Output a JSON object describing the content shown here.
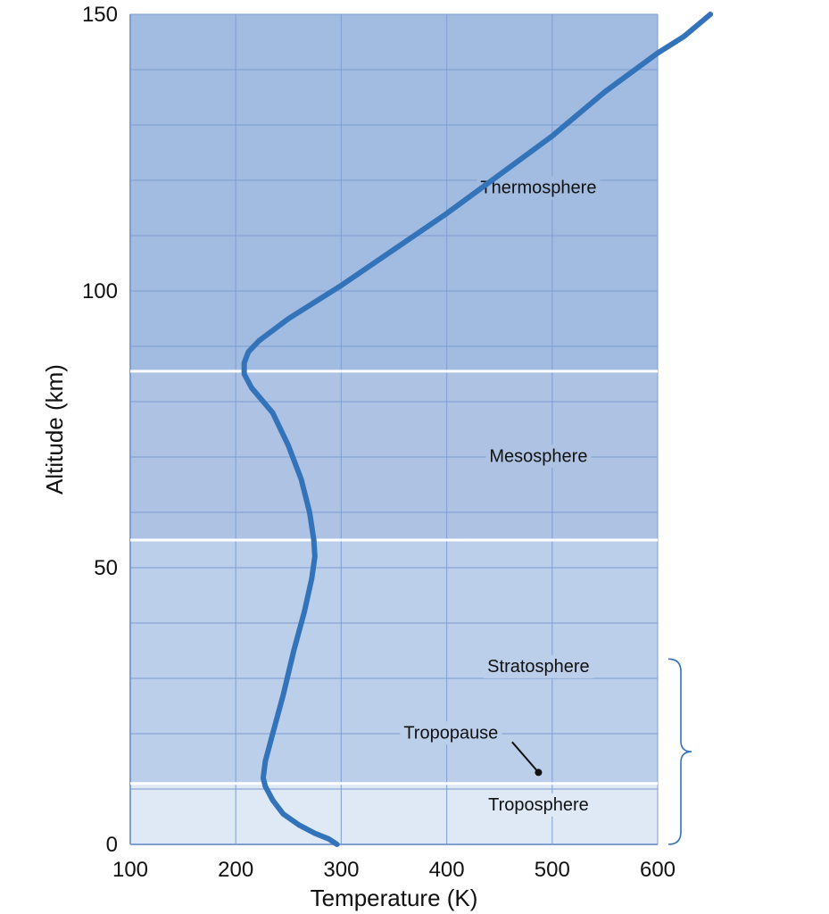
{
  "chart_data": {
    "type": "line",
    "xlabel": "Temperature (K)",
    "ylabel": "Altitude (km)",
    "xlim": [
      100,
      600
    ],
    "ylim": [
      0,
      150
    ],
    "x_ticks": [
      100,
      200,
      300,
      400,
      500,
      600
    ],
    "y_ticks": [
      0,
      50,
      100,
      150
    ],
    "x_tick_labels": [
      "100",
      "200",
      "300",
      "400",
      "500",
      "600"
    ],
    "y_tick_labels": [
      "0",
      "50",
      "100",
      "150"
    ],
    "grid": true,
    "minor_grid_step": {
      "x": 100,
      "y": 10
    },
    "series": [
      {
        "color": "#3373ba",
        "points": [
          [
            296,
            0
          ],
          [
            288,
            1
          ],
          [
            275,
            2
          ],
          [
            260,
            3.5
          ],
          [
            245,
            5.5
          ],
          [
            235,
            8
          ],
          [
            228,
            10.5
          ],
          [
            226,
            12
          ],
          [
            228,
            15
          ],
          [
            235,
            20
          ],
          [
            245,
            27
          ],
          [
            255,
            35
          ],
          [
            265,
            42
          ],
          [
            272,
            48
          ],
          [
            275,
            52
          ],
          [
            274,
            55
          ],
          [
            270,
            60
          ],
          [
            262,
            66
          ],
          [
            250,
            72
          ],
          [
            235,
            78
          ],
          [
            215,
            82.5
          ],
          [
            208,
            85
          ],
          [
            208,
            87
          ],
          [
            212,
            89
          ],
          [
            222,
            91
          ],
          [
            250,
            95
          ],
          [
            300,
            101
          ],
          [
            350,
            107.5
          ],
          [
            400,
            114
          ],
          [
            450,
            121
          ],
          [
            500,
            128
          ],
          [
            550,
            136
          ],
          [
            600,
            143
          ],
          [
            625,
            146
          ],
          [
            650,
            150
          ]
        ]
      }
    ],
    "layers": [
      {
        "name": "Troposphere",
        "from": 0,
        "to": 11,
        "color": "#dfe8f5"
      },
      {
        "name": "Stratosphere",
        "from": 11,
        "to": 55,
        "color": "#bccfea"
      },
      {
        "name": "Mesosphere",
        "from": 55,
        "to": 85.5,
        "color": "#aec3e4"
      },
      {
        "name": "Thermosphere",
        "from": 85.5,
        "to": 150,
        "color": "#a2bbe0"
      }
    ],
    "boundaries": [
      11,
      55,
      85.5
    ],
    "annotations": {
      "thermosphere": "Thermosphere",
      "mesosphere": "Mesosphere",
      "stratosphere": "Stratosphere",
      "tropopause": "Tropopause",
      "troposphere": "Troposphere"
    },
    "tropopause_marker": [
      487,
      13
    ]
  },
  "colors": {
    "line": "#3373ba",
    "grid": "#7f9fd1",
    "boundary": "#ffffff",
    "brace": "#3373ba"
  }
}
